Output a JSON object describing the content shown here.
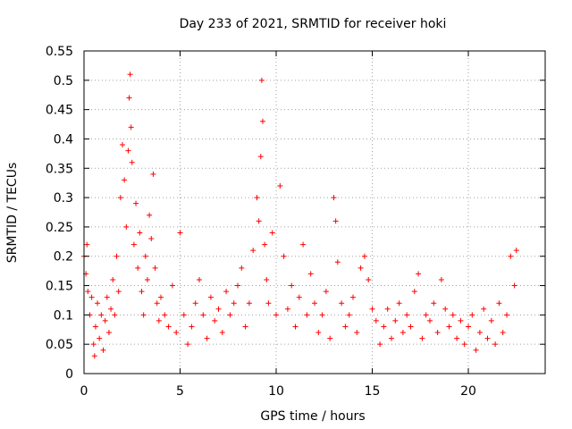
{
  "chart_data": {
    "type": "scatter",
    "title": "Day 233 of 2021, SRMTID for receiver hoki",
    "xlabel": "GPS time / hours",
    "ylabel": "SRMTID / TECUs",
    "xlim": [
      0,
      24
    ],
    "ylim": [
      0,
      0.55
    ],
    "xticks": [
      0,
      5,
      10,
      15,
      20
    ],
    "xtick_labels": [
      "0",
      "5",
      "10",
      "15",
      "20"
    ],
    "yticks": [
      0,
      0.05,
      0.1,
      0.15,
      0.2,
      0.25,
      0.3,
      0.35,
      0.4,
      0.45,
      0.5,
      0.55
    ],
    "ytick_labels": [
      "0",
      "0.05",
      "0.1",
      "0.15",
      "0.2",
      "0.25",
      "0.3",
      "0.35",
      "0.4",
      "0.45",
      "0.5",
      "0.55"
    ],
    "grid": true,
    "marker": "+",
    "series": [
      {
        "name": "SRMTID",
        "color": "#ff0000",
        "x": [
          0.0,
          0.1,
          0.15,
          0.2,
          0.3,
          0.4,
          0.5,
          0.55,
          0.6,
          0.7,
          0.8,
          0.9,
          1.0,
          1.1,
          1.2,
          1.3,
          1.4,
          1.5,
          1.6,
          1.7,
          1.8,
          1.9,
          2.0,
          2.1,
          2.2,
          2.3,
          2.35,
          2.4,
          2.45,
          2.5,
          2.6,
          2.7,
          2.8,
          2.9,
          3.0,
          3.1,
          3.2,
          3.3,
          3.4,
          3.5,
          3.6,
          3.7,
          3.8,
          3.9,
          4.0,
          4.2,
          4.4,
          4.6,
          4.8,
          5.0,
          5.2,
          5.4,
          5.6,
          5.8,
          6.0,
          6.2,
          6.4,
          6.6,
          6.8,
          7.0,
          7.2,
          7.4,
          7.6,
          7.8,
          8.0,
          8.2,
          8.4,
          8.6,
          8.8,
          9.0,
          9.1,
          9.2,
          9.25,
          9.3,
          9.4,
          9.5,
          9.6,
          9.8,
          10.0,
          10.2,
          10.4,
          10.6,
          10.8,
          11.0,
          11.2,
          11.4,
          11.6,
          11.8,
          12.0,
          12.2,
          12.4,
          12.6,
          12.8,
          13.0,
          13.1,
          13.2,
          13.4,
          13.6,
          13.8,
          14.0,
          14.2,
          14.4,
          14.6,
          14.8,
          15.0,
          15.2,
          15.4,
          15.6,
          15.8,
          16.0,
          16.2,
          16.4,
          16.6,
          16.8,
          17.0,
          17.2,
          17.4,
          17.6,
          17.8,
          18.0,
          18.2,
          18.4,
          18.6,
          18.8,
          19.0,
          19.2,
          19.4,
          19.6,
          19.8,
          20.0,
          20.2,
          20.4,
          20.6,
          20.8,
          21.0,
          21.2,
          21.4,
          21.6,
          21.8,
          22.0,
          22.2,
          22.4,
          22.5
        ],
        "y": [
          0.2,
          0.17,
          0.22,
          0.14,
          0.1,
          0.13,
          0.05,
          0.03,
          0.08,
          0.12,
          0.06,
          0.1,
          0.04,
          0.09,
          0.13,
          0.07,
          0.11,
          0.16,
          0.1,
          0.2,
          0.14,
          0.3,
          0.39,
          0.33,
          0.25,
          0.38,
          0.47,
          0.51,
          0.42,
          0.36,
          0.22,
          0.29,
          0.18,
          0.24,
          0.14,
          0.1,
          0.2,
          0.16,
          0.27,
          0.23,
          0.34,
          0.18,
          0.12,
          0.09,
          0.13,
          0.1,
          0.08,
          0.15,
          0.07,
          0.24,
          0.1,
          0.05,
          0.08,
          0.12,
          0.16,
          0.1,
          0.06,
          0.13,
          0.09,
          0.11,
          0.07,
          0.14,
          0.1,
          0.12,
          0.15,
          0.18,
          0.08,
          0.12,
          0.21,
          0.3,
          0.26,
          0.37,
          0.5,
          0.43,
          0.22,
          0.16,
          0.12,
          0.24,
          0.1,
          0.32,
          0.2,
          0.11,
          0.15,
          0.08,
          0.13,
          0.22,
          0.1,
          0.17,
          0.12,
          0.07,
          0.1,
          0.14,
          0.06,
          0.3,
          0.26,
          0.19,
          0.12,
          0.08,
          0.1,
          0.13,
          0.07,
          0.18,
          0.2,
          0.16,
          0.11,
          0.09,
          0.05,
          0.08,
          0.11,
          0.06,
          0.09,
          0.12,
          0.07,
          0.1,
          0.08,
          0.14,
          0.17,
          0.06,
          0.1,
          0.09,
          0.12,
          0.07,
          0.16,
          0.11,
          0.08,
          0.1,
          0.06,
          0.09,
          0.05,
          0.08,
          0.1,
          0.04,
          0.07,
          0.11,
          0.06,
          0.09,
          0.05,
          0.12,
          0.07,
          0.1,
          0.2,
          0.15,
          0.21
        ]
      }
    ]
  }
}
